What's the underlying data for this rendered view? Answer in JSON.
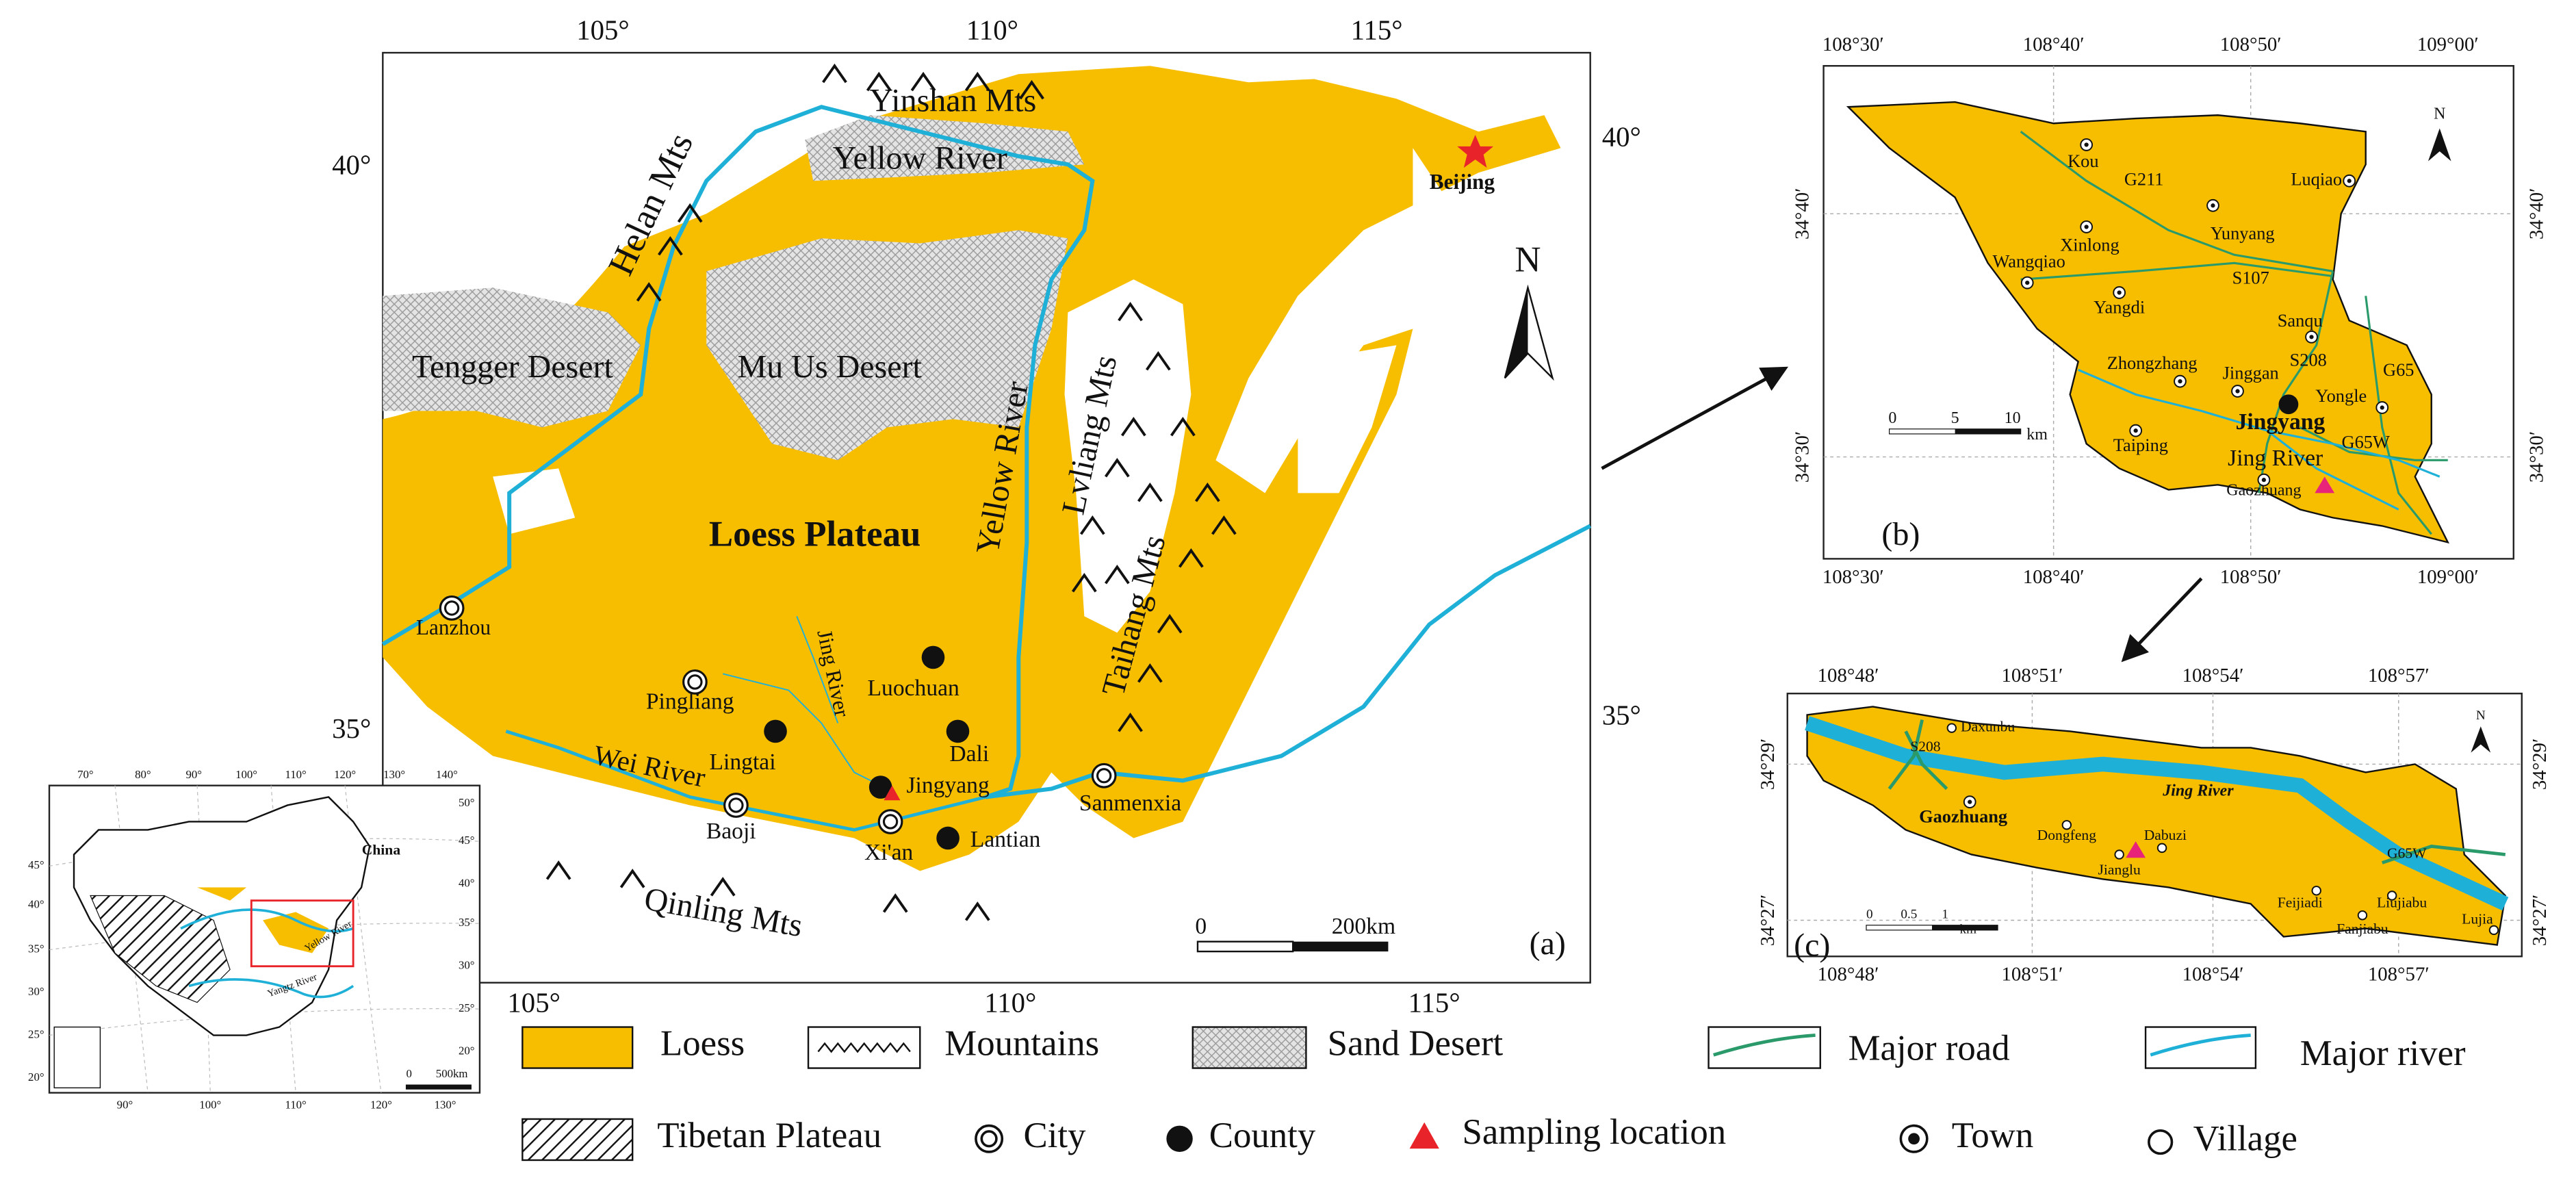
{
  "map_a": {
    "ticks_top": [
      "105°",
      "110°",
      "115°"
    ],
    "ticks_bottom": [
      "105°",
      "110°",
      "115°"
    ],
    "ticks_left": [
      "40°",
      "35°"
    ],
    "ticks_right": [
      "40°",
      "35°"
    ],
    "labels": {
      "yinshan_mts": "Yinshan Mts",
      "yellow_river_north": "Yellow River",
      "helan_mts": "Helan Mts",
      "tengger_desert": "Tengger Desert",
      "mu_us_desert": "Mu Us Desert",
      "yellow_river_east": "Yellow River",
      "lvliang_mts": "Lvliang Mts",
      "taihang_mts": "Taihang Mts",
      "loess_plateau": "Loess Plateau",
      "beijing": "Beijing",
      "lanzhou": "Lanzhou",
      "pingliang": "Pingliang",
      "lingtai": "Lingtai",
      "jing_river": "Jing River",
      "luochuan": "Luochuan",
      "dali": "Dali",
      "jingyang": "Jingyang",
      "xian": "Xi'an",
      "baoji": "Baoji",
      "wei_river": "Wei River",
      "lantian": "Lantian",
      "sanmenxia": "Sanmenxia",
      "qinling_mts": "Qinling Mts"
    },
    "north": "N",
    "scale": [
      "0",
      "200km"
    ],
    "panel": "(a)"
  },
  "map_b": {
    "ticks_top": [
      "108°30′",
      "108°40′",
      "108°50′",
      "109°00′"
    ],
    "ticks_bottom": [
      "108°30′",
      "108°40′",
      "108°50′",
      "109°00′"
    ],
    "ticks_left": [
      "34°40′",
      "34°30′"
    ],
    "ticks_right": [
      "34°40′",
      "34°30′"
    ],
    "labels": {
      "kou": "Kou",
      "g211": "G211",
      "luqiao": "Luqiao",
      "xinlong": "Xinlong",
      "yunyang": "Yunyang",
      "wangqiao": "Wangqiao",
      "s107": "S107",
      "yangdi": "Yangdi",
      "sanqu": "Sanqu",
      "zhongzhang": "Zhongzhang",
      "jinggan": "Jinggan",
      "s208": "S208",
      "g65": "G65",
      "yongle": "Yongle",
      "jingyang": "Jingyang",
      "taiping": "Taiping",
      "jing_river": "Jing River",
      "g65w": "G65W",
      "gaozhuang": "Gaozhuang"
    },
    "north": "N",
    "scale": [
      "0",
      "5",
      "10",
      "km"
    ],
    "panel": "(b)"
  },
  "map_c": {
    "ticks_top": [
      "108°48′",
      "108°51′",
      "108°54′",
      "108°57′"
    ],
    "ticks_bottom": [
      "108°48′",
      "108°51′",
      "108°54′",
      "108°57′"
    ],
    "ticks_left": [
      "34°29′",
      "34°27′"
    ],
    "ticks_right": [
      "34°29′",
      "34°27′"
    ],
    "labels": {
      "daxunbu": "Daxunbu",
      "s208": "S208",
      "jing_river": "Jing River",
      "gaozhuang": "Gaozhuang",
      "dongfeng": "Dongfeng",
      "dabuzi": "Dabuzi",
      "jianglu": "Jianglu",
      "feijiadi": "Feijiadi",
      "liujiabu": "Liujiabu",
      "fanjiabu": "Fanjiabu",
      "lujia": "Lujia",
      "g65w": "G65W"
    },
    "north": "N",
    "scale": [
      "0",
      "0.5",
      "1",
      "km"
    ],
    "panel": "(c)"
  },
  "map_china": {
    "ticks_top": [
      "70°",
      "80°",
      "90°",
      "100°",
      "110°",
      "120°",
      "130°",
      "140°"
    ],
    "ticks_left": [
      "45°",
      "40°",
      "35°",
      "30°",
      "25°",
      "20°"
    ],
    "ticks_right": [
      "50°",
      "45°",
      "40°",
      "35°",
      "30°",
      "25°",
      "20°"
    ],
    "ticks_bottom": [
      "90°",
      "100°",
      "110°",
      "120°",
      "130°"
    ],
    "labels": {
      "china": "China",
      "yangtz_river": "Yangtz River",
      "yellow_river": "Yellow River"
    },
    "scale": [
      "0",
      "500km"
    ]
  },
  "legend": {
    "loess": "Loess",
    "mountains": "Mountains",
    "sand_desert": "Sand Desert",
    "major_road": "Major road",
    "major_river": "Major river",
    "tibetan_plateau": "Tibetan Plateau",
    "city": "City",
    "county": "County",
    "sampling_location": "Sampling location",
    "town": "Town",
    "village": "Village"
  }
}
